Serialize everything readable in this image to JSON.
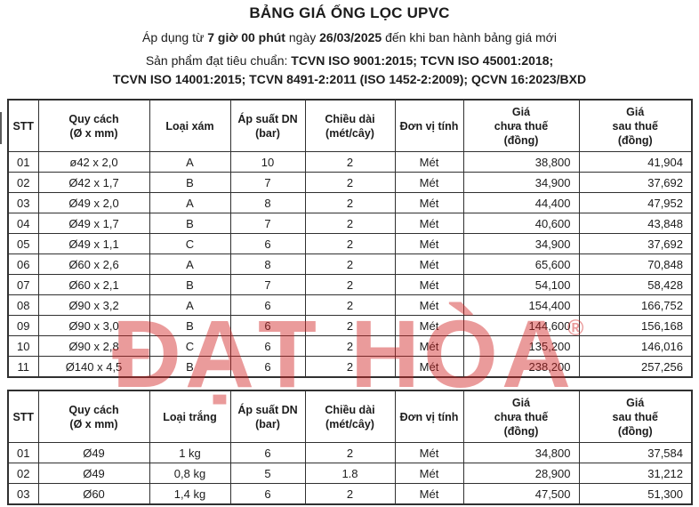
{
  "header": {
    "title": "BẢNG GIÁ ỐNG LỌC UPVC",
    "validity": {
      "prefix": "Áp dụng từ ",
      "time": "7 giờ 00 phút",
      "mid": " ngày ",
      "date": "26/03/2025",
      "suffix": " đến khi ban hành bảng giá mới"
    },
    "standards": {
      "prefix": "Sản phẩm đạt tiêu chuẩn: ",
      "line1_bold": "TCVN ISO 9001:2015; TCVN ISO 45001:2018;",
      "line2_bold": "TCVN ISO 14001:2015; TCVN 8491-2:2011 (ISO 1452-2:2009); QCVN 16:2023/BXD"
    }
  },
  "watermark": {
    "text": "ĐẠT HÒA",
    "registered_mark": "®",
    "color": "#d22323"
  },
  "tables": [
    {
      "name": "gray-pipes",
      "columns": [
        "STT",
        "Quy cách\n(Ø x mm)",
        "Loại xám",
        "Áp suất DN\n(bar)",
        "Chiều dài\n(mét/cây)",
        "Đơn vị tính",
        "Giá\nchưa thuế\n(đồng)",
        "Giá\nsau thuế\n(đồng)"
      ],
      "rows": [
        [
          "01",
          "ø42 x 2,0",
          "A",
          "10",
          "2",
          "Mét",
          "38,800",
          "41,904"
        ],
        [
          "02",
          "Ø42 x 1,7",
          "B",
          "7",
          "2",
          "Mét",
          "34,900",
          "37,692"
        ],
        [
          "03",
          "Ø49 x 2,0",
          "A",
          "8",
          "2",
          "Mét",
          "44,400",
          "47,952"
        ],
        [
          "04",
          "Ø49 x 1,7",
          "B",
          "7",
          "2",
          "Mét",
          "40,600",
          "43,848"
        ],
        [
          "05",
          "Ø49 x 1,1",
          "C",
          "6",
          "2",
          "Mét",
          "34,900",
          "37,692"
        ],
        [
          "06",
          "Ø60 x 2,6",
          "A",
          "8",
          "2",
          "Mét",
          "65,600",
          "70,848"
        ],
        [
          "07",
          "Ø60 x 2,1",
          "B",
          "7",
          "2",
          "Mét",
          "54,100",
          "58,428"
        ],
        [
          "08",
          "Ø90 x 3,2",
          "A",
          "6",
          "2",
          "Mét",
          "154,400",
          "166,752"
        ],
        [
          "09",
          "Ø90 x 3,0",
          "B",
          "6",
          "2",
          "Mét",
          "144,600",
          "156,168"
        ],
        [
          "10",
          "Ø90 x 2,8",
          "C",
          "6",
          "2",
          "Mét",
          "135,200",
          "146,016"
        ],
        [
          "11",
          "Ø140 x 4,5",
          "B",
          "6",
          "2",
          "Mét",
          "238,200",
          "257,256"
        ]
      ]
    },
    {
      "name": "white-pipes",
      "columns": [
        "STT",
        "Quy cách\n(Ø x mm)",
        "Loại trắng",
        "Áp suất DN\n(bar)",
        "Chiều dài\n(mét/cây)",
        "Đơn vị tính",
        "Giá\nchưa thuế\n(đồng)",
        "Giá\nsau thuế\n(đồng)"
      ],
      "rows": [
        [
          "01",
          "Ø49",
          "1 kg",
          "6",
          "2",
          "Mét",
          "34,800",
          "37,584"
        ],
        [
          "02",
          "Ø49",
          "0,8 kg",
          "5",
          "1.8",
          "Mét",
          "28,900",
          "31,212"
        ],
        [
          "03",
          "Ø60",
          "1,4 kg",
          "6",
          "2",
          "Mét",
          "47,500",
          "51,300"
        ]
      ]
    }
  ]
}
